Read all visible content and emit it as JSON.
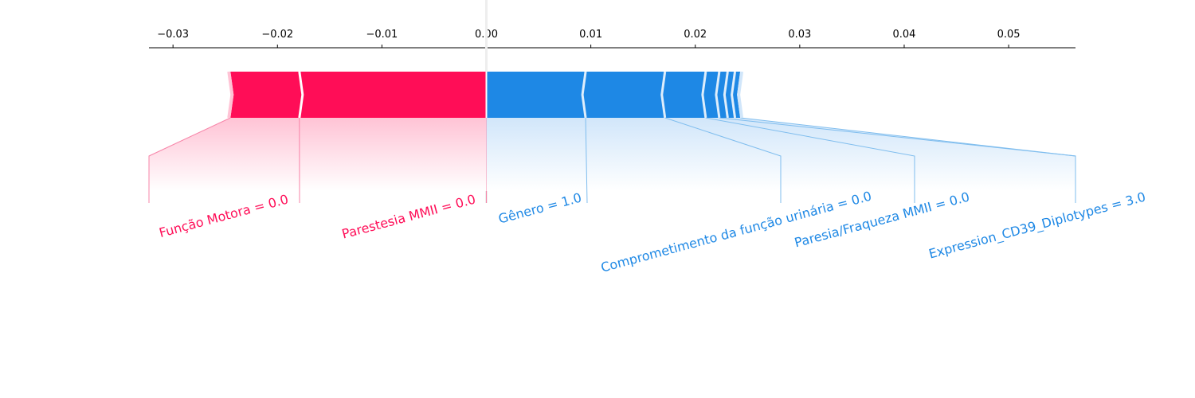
{
  "chart_data": {
    "type": "force",
    "title": "",
    "xlabel": "",
    "ylabel": "",
    "xlim": [
      -0.0323,
      0.0564
    ],
    "ticks": [
      -0.03,
      -0.02,
      -0.01,
      0.0,
      0.01,
      0.02,
      0.03,
      0.04,
      0.05
    ],
    "tick_labels": [
      "−0.03",
      "−0.02",
      "−0.01",
      "0.00",
      "0.01",
      "0.02",
      "0.03",
      "0.04",
      "0.05"
    ],
    "base_value": 0.0,
    "base_value_label": "0.00",
    "colors": {
      "positive": "#ff0d57",
      "positive_light": "#ffc3d5",
      "positive_line": "#f784a8",
      "negative": "#1e88e5",
      "negative_light": "#d1e6fa",
      "negative_line": "#7fbdee",
      "separator": "#ffffff",
      "axis": "#000000"
    },
    "positive_segments": [
      {
        "start": -0.0245,
        "end": -0.0179,
        "label": "Função Motora = 0.0"
      },
      {
        "start": -0.0179,
        "end": 0.0,
        "label": "Parestesia MMII = 0.0"
      }
    ],
    "negative_segments": [
      {
        "start": 0.0,
        "end": 0.0095,
        "label": "Gênero = 1.0"
      },
      {
        "start": 0.0095,
        "end": 0.0171,
        "label": "Comprometimento da função urinária = 0.0"
      },
      {
        "start": 0.0171,
        "end": 0.021,
        "label": "Paresia/Fraqueza MMII = 0.0"
      },
      {
        "start": 0.021,
        "end": 0.0223,
        "label": "Expression_CD39_Diplotypes = 3.0"
      },
      {
        "start": 0.0223,
        "end": 0.0231,
        "label": ""
      },
      {
        "start": 0.0231,
        "end": 0.0238,
        "label": ""
      },
      {
        "start": 0.0238,
        "end": 0.0243,
        "label": ""
      }
    ]
  }
}
